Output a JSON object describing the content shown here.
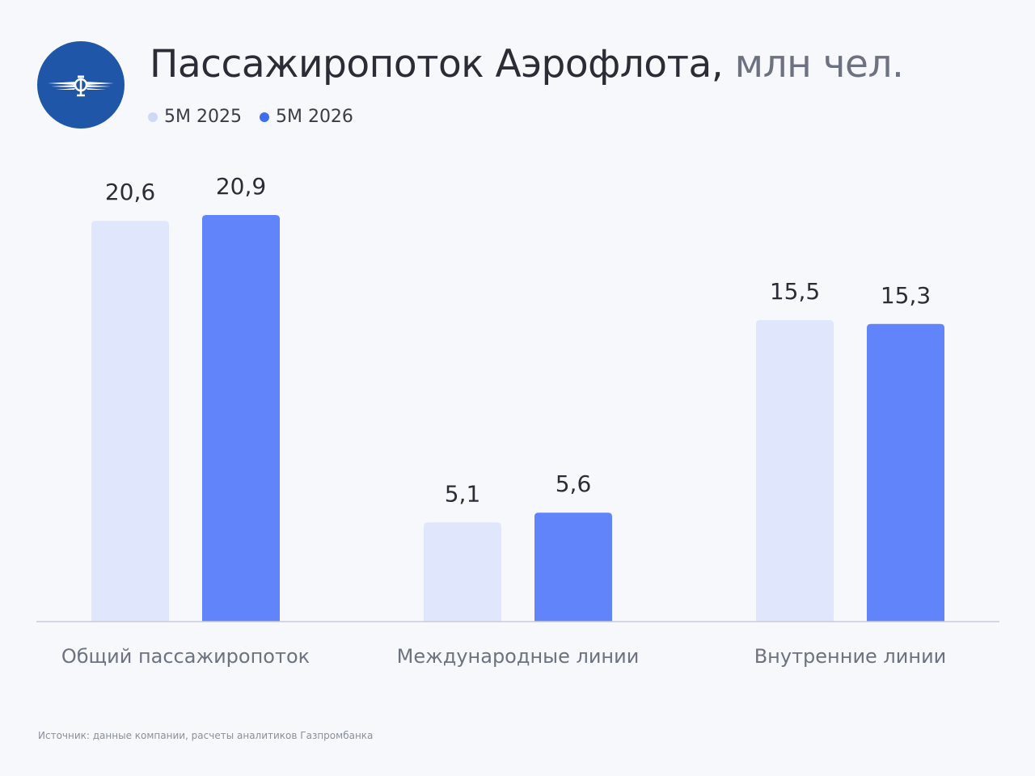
{
  "header": {
    "title": "Пассажиропоток Аэрофлота,",
    "unit": " млн чел.",
    "logo_icon": "aeroflot-winged-sickle-hammer-icon"
  },
  "colors": {
    "series_2025": "#e0e6fb",
    "series_2026": "#6184fb",
    "legend_2025": "#cfd9f6",
    "legend_2026": "#3f6cf0",
    "axis": "#c8cbd8",
    "logo_bg": "#1f56a8"
  },
  "chart_data": {
    "type": "bar",
    "categories": [
      "Общий пассажиропоток",
      "Международные линии",
      "Внутренние линии"
    ],
    "series": [
      {
        "name": "5M 2025",
        "values": [
          20.6,
          5.1,
          15.5
        ],
        "labels": [
          "20,6",
          "5,1",
          "15,5"
        ]
      },
      {
        "name": "5M 2026",
        "values": [
          20.9,
          5.6,
          15.3
        ],
        "labels": [
          "20,9",
          "5,6",
          "15,3"
        ]
      }
    ],
    "ylim": [
      0,
      20.9
    ],
    "grid": false,
    "legend": "top-left"
  },
  "footer": {
    "source": "Источник: данные компании, расчеты аналитиков Газпромбанка"
  }
}
